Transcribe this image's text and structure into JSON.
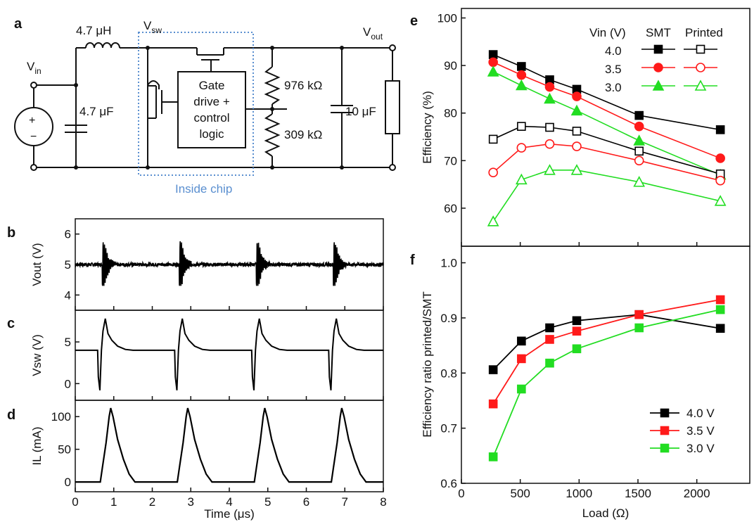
{
  "panel_labels": {
    "a": "a",
    "b": "b",
    "c": "c",
    "d": "d",
    "e": "e",
    "f": "f"
  },
  "circuit": {
    "inductor": "4.7 μH",
    "vsw_main": "V",
    "vsw_sub": "sw",
    "vout_main": "V",
    "vout_sub": "out",
    "vin_main": "V",
    "vin_sub": "in",
    "cin": "4.7 μF",
    "gate_lines": [
      "Gate",
      "drive +",
      "control",
      "logic"
    ],
    "r_top": "976 kΩ",
    "r_bot": "309 kΩ",
    "cout": "10 μF",
    "inside_chip": "Inside chip",
    "source_plus": "+",
    "source_minus": "−"
  },
  "colors": {
    "black": "#000000",
    "red": "#ff1a1a",
    "green": "#22dd22",
    "chip_box": "#5a8fd0"
  },
  "chart_data": [
    {
      "id": "b",
      "type": "line",
      "title": "",
      "xlabel": "",
      "ylabel": "Vout (V)",
      "xlim": [
        0,
        8
      ],
      "ylim": [
        3.5,
        6.5
      ],
      "yticks": [
        4,
        5,
        6
      ],
      "baseline": 5.0,
      "pulse_times": [
        0.75,
        2.75,
        4.75,
        6.75
      ],
      "ringing_range": [
        4.3,
        5.8
      ],
      "series": [
        {
          "values_description": "",
          "color": "#000000"
        }
      ]
    },
    {
      "id": "c",
      "type": "line",
      "xlabel": "",
      "ylabel": "Vsw (V)",
      "xlim": [
        0,
        8
      ],
      "ylim": [
        -2,
        8.8
      ],
      "yticks": [
        0,
        5
      ],
      "series": [
        {
          "color": "#000000",
          "points": [
            [
              0,
              4.0
            ],
            [
              0.58,
              4.0
            ],
            [
              0.6,
              0.8
            ],
            [
              0.64,
              -0.8
            ],
            [
              0.68,
              4.0
            ],
            [
              0.72,
              6.3
            ],
            [
              0.78,
              7.8
            ],
            [
              0.85,
              6.0
            ],
            [
              0.95,
              5.2
            ],
            [
              1.1,
              4.5
            ],
            [
              1.3,
              4.1
            ],
            [
              1.5,
              4.0
            ],
            [
              2.58,
              4.0
            ],
            [
              2.6,
              0.8
            ],
            [
              2.64,
              -0.8
            ],
            [
              2.68,
              4.0
            ],
            [
              2.72,
              6.3
            ],
            [
              2.78,
              7.8
            ],
            [
              2.85,
              6.0
            ],
            [
              2.95,
              5.2
            ],
            [
              3.1,
              4.5
            ],
            [
              3.3,
              4.1
            ],
            [
              3.5,
              4.0
            ],
            [
              4.58,
              4.0
            ],
            [
              4.6,
              0.8
            ],
            [
              4.64,
              -0.8
            ],
            [
              4.68,
              4.0
            ],
            [
              4.72,
              6.3
            ],
            [
              4.78,
              7.8
            ],
            [
              4.85,
              6.0
            ],
            [
              4.95,
              5.2
            ],
            [
              5.1,
              4.5
            ],
            [
              5.3,
              4.1
            ],
            [
              5.5,
              4.0
            ],
            [
              6.58,
              4.0
            ],
            [
              6.6,
              0.8
            ],
            [
              6.64,
              -0.8
            ],
            [
              6.68,
              4.0
            ],
            [
              6.72,
              6.3
            ],
            [
              6.78,
              7.8
            ],
            [
              6.85,
              6.0
            ],
            [
              6.95,
              5.2
            ],
            [
              7.1,
              4.5
            ],
            [
              7.3,
              4.1
            ],
            [
              7.5,
              4.0
            ],
            [
              8,
              4.0
            ]
          ]
        }
      ]
    },
    {
      "id": "d",
      "type": "line",
      "xlabel": "Time (μs)",
      "ylabel": "IL (mA)",
      "xlim": [
        0,
        8
      ],
      "ylim": [
        -15,
        125
      ],
      "xticks": [
        0,
        1,
        2,
        3,
        4,
        5,
        6,
        7,
        8
      ],
      "yticks": [
        0,
        50,
        100
      ],
      "series": [
        {
          "color": "#000000",
          "points": [
            [
              0,
              0
            ],
            [
              0.65,
              0
            ],
            [
              0.7,
              20
            ],
            [
              0.8,
              60
            ],
            [
              0.88,
              100
            ],
            [
              0.92,
              113
            ],
            [
              0.98,
              100
            ],
            [
              1.1,
              65
            ],
            [
              1.25,
              35
            ],
            [
              1.4,
              12
            ],
            [
              1.55,
              0
            ],
            [
              2.65,
              0
            ],
            [
              2.7,
              20
            ],
            [
              2.8,
              60
            ],
            [
              2.88,
              100
            ],
            [
              2.92,
              113
            ],
            [
              2.98,
              100
            ],
            [
              3.1,
              65
            ],
            [
              3.25,
              35
            ],
            [
              3.4,
              12
            ],
            [
              3.55,
              0
            ],
            [
              4.65,
              0
            ],
            [
              4.7,
              20
            ],
            [
              4.8,
              60
            ],
            [
              4.88,
              100
            ],
            [
              4.92,
              113
            ],
            [
              4.98,
              100
            ],
            [
              5.1,
              65
            ],
            [
              5.25,
              35
            ],
            [
              5.4,
              12
            ],
            [
              5.55,
              0
            ],
            [
              6.65,
              0
            ],
            [
              6.7,
              20
            ],
            [
              6.8,
              60
            ],
            [
              6.88,
              100
            ],
            [
              6.92,
              113
            ],
            [
              6.98,
              100
            ],
            [
              7.1,
              65
            ],
            [
              7.25,
              35
            ],
            [
              7.4,
              12
            ],
            [
              7.55,
              0
            ],
            [
              8,
              0
            ]
          ]
        }
      ]
    },
    {
      "id": "e",
      "type": "line",
      "xlabel": "",
      "ylabel": "Efficiency (%)",
      "xlim": [
        0,
        2450
      ],
      "ylim": [
        52,
        102
      ],
      "yticks": [
        60,
        70,
        80,
        90,
        100
      ],
      "x": [
        270,
        510,
        750,
        980,
        1510,
        2200
      ],
      "legend": {
        "header_vin": "Vin (V)",
        "header_smt": "SMT",
        "header_printed": "Printed",
        "rows": [
          "4.0",
          "3.5",
          "3.0"
        ],
        "placement": "top-right"
      },
      "series": [
        {
          "group": "4.0",
          "kind": "SMT",
          "marker": "square-filled",
          "color": "#000000",
          "values": [
            92.3,
            89.8,
            87.0,
            85.0,
            79.5,
            76.5
          ]
        },
        {
          "group": "3.5",
          "kind": "SMT",
          "marker": "circle-filled",
          "color": "#ff1a1a",
          "values": [
            90.7,
            88.0,
            85.5,
            83.5,
            77.2,
            70.5
          ]
        },
        {
          "group": "3.0",
          "kind": "SMT",
          "marker": "triangle-filled",
          "color": "#22dd22",
          "values": [
            88.7,
            85.8,
            83.0,
            80.5,
            74.2,
            67.0
          ]
        },
        {
          "group": "4.0",
          "kind": "Printed",
          "marker": "square-open",
          "color": "#000000",
          "values": [
            74.5,
            77.2,
            77.0,
            76.2,
            72.0,
            67.2
          ]
        },
        {
          "group": "3.5",
          "kind": "Printed",
          "marker": "circle-open",
          "color": "#ff1a1a",
          "values": [
            67.5,
            72.7,
            73.5,
            73.0,
            70.0,
            65.8
          ]
        },
        {
          "group": "3.0",
          "kind": "Printed",
          "marker": "triangle-open",
          "color": "#22dd22",
          "values": [
            57.2,
            66.0,
            68.0,
            68.0,
            65.5,
            61.5
          ]
        }
      ]
    },
    {
      "id": "f",
      "type": "line",
      "xlabel": "Load (Ω)",
      "ylabel": "Efficiency ratio printed/SMT",
      "xlim": [
        0,
        2450
      ],
      "ylim": [
        0.6,
        1.03
      ],
      "xticks": [
        0,
        500,
        1000,
        1500,
        2000
      ],
      "yticks": [
        0.6,
        0.7,
        0.8,
        0.9,
        1.0
      ],
      "x": [
        270,
        510,
        750,
        980,
        1510,
        2200
      ],
      "legend": {
        "placement": "bottom-right"
      },
      "series": [
        {
          "name": "4.0 V",
          "color": "#000000",
          "values": [
            0.806,
            0.858,
            0.882,
            0.895,
            0.906,
            0.881
          ]
        },
        {
          "name": "3.5 V",
          "color": "#ff1a1a",
          "values": [
            0.744,
            0.826,
            0.861,
            0.876,
            0.906,
            0.933
          ]
        },
        {
          "name": "3.0 V",
          "color": "#22dd22",
          "values": [
            0.648,
            0.771,
            0.818,
            0.844,
            0.882,
            0.915
          ]
        }
      ]
    }
  ]
}
